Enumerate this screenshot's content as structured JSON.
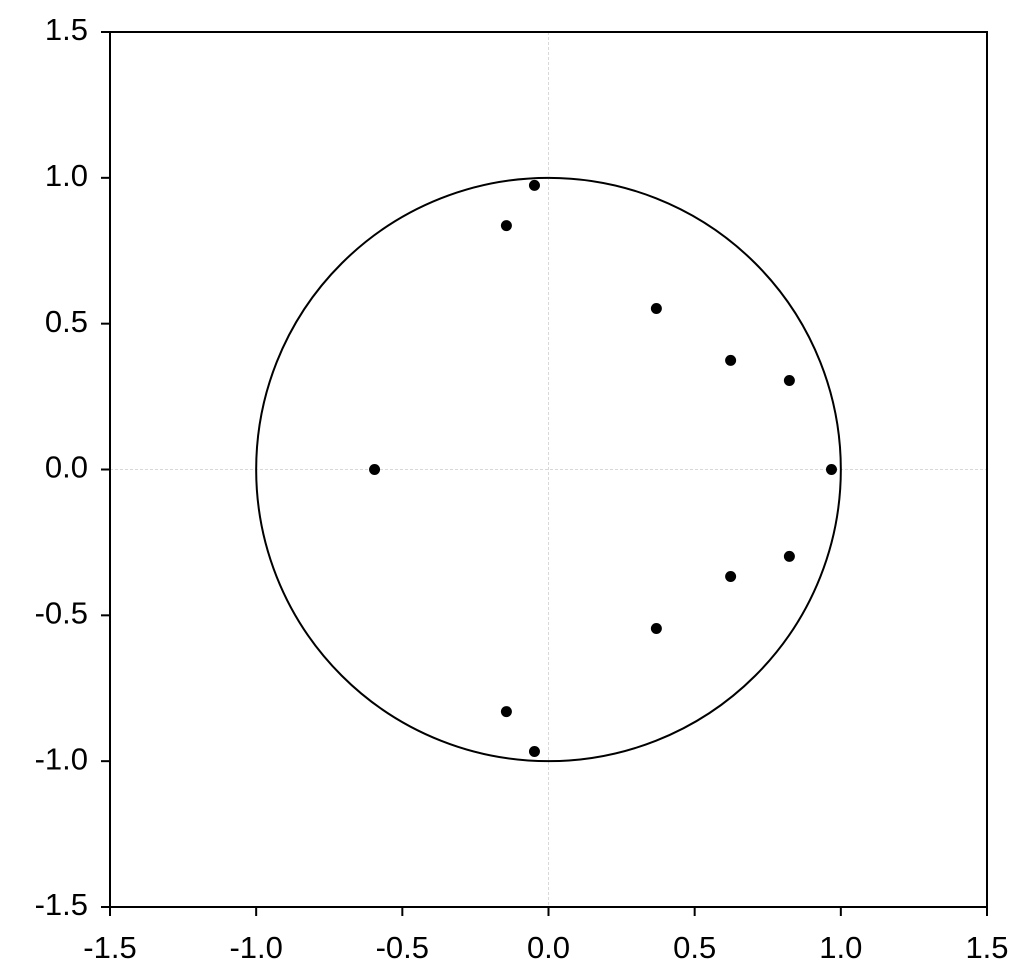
{
  "chart_data": {
    "type": "scatter",
    "x": [
      -0.048,
      -0.144,
      0.369,
      0.623,
      0.824,
      0.968,
      -0.595,
      0.824,
      0.623,
      0.369,
      -0.144,
      -0.048
    ],
    "values": [
      0.974,
      0.836,
      0.552,
      0.374,
      0.305,
      0.0,
      0.0,
      -0.298,
      -0.367,
      -0.545,
      -0.83,
      -0.967
    ],
    "color": "#000000",
    "xlim": [
      -1.5,
      1.5
    ],
    "ylim": [
      -1.5,
      1.5
    ],
    "xticks": [
      -1.5,
      {
        "value": -1,
        "label": "-1.0"
      },
      -0.5,
      {
        "value": 0,
        "label": "0.0"
      },
      0.5,
      {
        "value": 1,
        "label": "1.0"
      },
      1.5
    ],
    "yticks": [
      -1.5,
      {
        "value": -1,
        "label": "-1.0"
      },
      -0.5,
      {
        "value": 0,
        "label": "0.0"
      },
      0.5,
      {
        "value": 1,
        "label": "1.0"
      },
      1.5
    ],
    "zero_lines": true,
    "circle_radius": 1
  }
}
